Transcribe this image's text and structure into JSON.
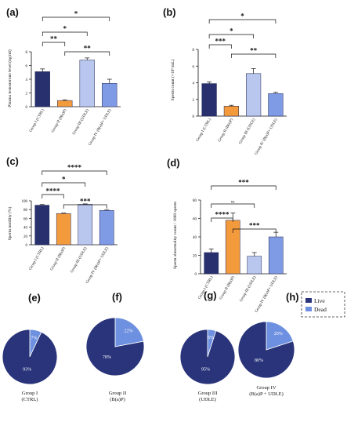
{
  "colors": {
    "dark_blue": "#28306e",
    "orange": "#f39a3c",
    "pale_blue": "#b9c6ee",
    "mid_blue": "#7f9be6",
    "pie_dark": "#29347a",
    "pie_light": "#6e90e0"
  },
  "chart_data": [
    {
      "type": "bar",
      "panel": "(a)",
      "ylabel": "Plasma testosterone level (ng/ml)",
      "categories": [
        "Group I (CTRL)",
        "Group II (B(a)P)",
        "Group III (UDLE)",
        "Group IV (B(a)P+ UDLE)"
      ],
      "values": [
        5.1,
        0.9,
        6.8,
        3.4
      ],
      "errors": [
        0.4,
        0.1,
        0.3,
        0.6
      ],
      "ylim": [
        0,
        8
      ],
      "yticks": [
        "0",
        "2",
        "4",
        "6",
        "8"
      ],
      "significance": [
        {
          "from": 0,
          "to": 3,
          "label": "*"
        },
        {
          "from": 0,
          "to": 2,
          "label": "*"
        },
        {
          "from": 0,
          "to": 1,
          "label": "**"
        },
        {
          "from": 1,
          "to": 3,
          "label": "**"
        }
      ]
    },
    {
      "type": "bar",
      "panel": "(b)",
      "ylabel": "Sperm count (×10⁶/mL)",
      "categories": [
        "Group I (CTRL)",
        "Group II (B(a)P)",
        "Group III (UDLE)",
        "Group IV (B(a)P+ UDLE)"
      ],
      "values": [
        3.9,
        1.2,
        5.1,
        2.7
      ],
      "errors": [
        0.2,
        0.1,
        0.6,
        0.15
      ],
      "ylim": [
        0,
        8
      ],
      "yticks": [
        "0",
        "2",
        "4",
        "6",
        "8"
      ],
      "significance": [
        {
          "from": 0,
          "to": 3,
          "label": "*"
        },
        {
          "from": 0,
          "to": 2,
          "label": "*"
        },
        {
          "from": 0,
          "to": 1,
          "label": "***"
        },
        {
          "from": 1,
          "to": 3,
          "label": "**"
        }
      ]
    },
    {
      "type": "bar",
      "panel": "(c)",
      "ylabel": "Sperm motility (%)",
      "categories": [
        "Group I (CTRL)",
        "Group II (B(a)P)",
        "Group III (UDLE)",
        "Group IV (B(a)P+ UDLE)"
      ],
      "values": [
        90,
        71,
        92,
        78
      ],
      "errors": [
        1.5,
        1.0,
        1.0,
        1.0
      ],
      "ylim": [
        0,
        100
      ],
      "yticks": [
        "0",
        "20",
        "40",
        "60",
        "80",
        "100"
      ],
      "significance": [
        {
          "from": 0,
          "to": 3,
          "label": "****"
        },
        {
          "from": 0,
          "to": 2,
          "label": "*"
        },
        {
          "from": 0,
          "to": 1,
          "label": "****"
        },
        {
          "from": 1,
          "to": 3,
          "label": "***"
        }
      ]
    },
    {
      "type": "bar",
      "panel": "(d)",
      "ylabel": "Sperm abnormality count / 1000 sperm",
      "categories": [
        "Group I (CTRL)",
        "Group II (B(a)P)",
        "Group III (UDLE)",
        "Group IV (B(a)P+ UDLE)"
      ],
      "values": [
        23,
        58,
        19,
        40
      ],
      "errors": [
        4,
        8,
        4,
        5
      ],
      "ylim": [
        0,
        80
      ],
      "yticks": [
        "0",
        "20",
        "40",
        "60",
        "80"
      ],
      "significance": [
        {
          "from": 0,
          "to": 3,
          "label": "***"
        },
        {
          "from": 0,
          "to": 2,
          "label": "ns"
        },
        {
          "from": 0,
          "to": 1,
          "label": "****"
        },
        {
          "from": 1,
          "to": 3,
          "label": "***"
        }
      ]
    },
    {
      "type": "pie",
      "panel": "(e)",
      "caption": [
        "Group I",
        "(CTRL)"
      ],
      "slices": [
        {
          "label": "Live",
          "value": 93,
          "text": "93%"
        },
        {
          "label": "Dead",
          "value": 7,
          "text": "7%"
        }
      ]
    },
    {
      "type": "pie",
      "panel": "(f)",
      "caption": [
        "Group II",
        "(B(a)P)"
      ],
      "slices": [
        {
          "label": "Live",
          "value": 78,
          "text": "78%"
        },
        {
          "label": "Dead",
          "value": 22,
          "text": "22%"
        }
      ]
    },
    {
      "type": "pie",
      "panel": "(g)",
      "caption": [
        "Group III",
        "(UDLE)"
      ],
      "slices": [
        {
          "label": "Live",
          "value": 95,
          "text": "95%"
        },
        {
          "label": "Dead",
          "value": 5,
          "text": "5%"
        }
      ]
    },
    {
      "type": "pie",
      "panel": "(h)",
      "caption": [
        "Group IV",
        "(B(a)P + UDLE)"
      ],
      "slices": [
        {
          "label": "Live",
          "value": 80,
          "text": "80%"
        },
        {
          "label": "Dead",
          "value": 20,
          "text": "20%"
        }
      ]
    }
  ],
  "legend": {
    "live": "Live",
    "dead": "Dead",
    "placement": "top-right"
  }
}
